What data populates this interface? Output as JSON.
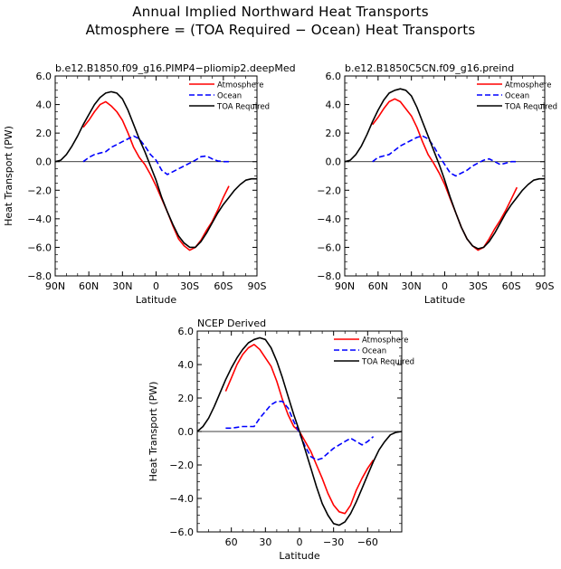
{
  "figure": {
    "title_line1": "Annual Implied Northward Heat Transports",
    "title_line2": "Atmosphere = (TOA Required − Ocean) Heat Transports"
  },
  "chart_data": [
    {
      "type": "line",
      "title": "b.e12.B1850.f09_g16.PIMP4−pliomip2.deepMed",
      "xlabel": "Latitude",
      "ylabel": "Heat Transport (PW)",
      "xlim": [
        90,
        -90
      ],
      "ylim": [
        -8,
        6
      ],
      "xticks": [
        90,
        60,
        30,
        0,
        -30,
        -60,
        -90
      ],
      "xtick_labels": [
        "90N",
        "60N",
        "30N",
        "0",
        "30S",
        "60S",
        "90S"
      ],
      "yticks": [
        6,
        4,
        2,
        0,
        -2,
        -4,
        -6,
        -8
      ],
      "ytick_labels": [
        "6.0",
        "4.0",
        "2.0",
        "0.0",
        "−2.0",
        "−4.0",
        "−6.0",
        "−8.0"
      ],
      "legend_position": "top-right",
      "series": [
        {
          "name": "Atmosphere",
          "color": "#ff0000",
          "style": "solid",
          "x": [
            65,
            60,
            55,
            50,
            45,
            40,
            35,
            30,
            25,
            20,
            15,
            10,
            5,
            0,
            -5,
            -10,
            -15,
            -20,
            -25,
            -30,
            -35,
            -40,
            -45,
            -50,
            -55,
            -60,
            -65
          ],
          "y": [
            2.4,
            2.9,
            3.5,
            4.0,
            4.2,
            3.9,
            3.5,
            2.9,
            2.0,
            1.0,
            0.3,
            -0.2,
            -0.9,
            -1.7,
            -2.6,
            -3.5,
            -4.5,
            -5.4,
            -5.9,
            -6.2,
            -6.0,
            -5.5,
            -4.8,
            -4.2,
            -3.4,
            -2.5,
            -1.7
          ]
        },
        {
          "name": "Ocean",
          "color": "#0000ff",
          "style": "dashed",
          "x": [
            65,
            60,
            55,
            50,
            45,
            40,
            35,
            30,
            25,
            20,
            15,
            10,
            5,
            0,
            -5,
            -10,
            -15,
            -20,
            -25,
            -30,
            -35,
            -40,
            -45,
            -50,
            -55,
            -60,
            -65
          ],
          "y": [
            0.0,
            0.3,
            0.5,
            0.6,
            0.7,
            1.0,
            1.2,
            1.4,
            1.6,
            1.8,
            1.6,
            1.1,
            0.5,
            0.1,
            -0.6,
            -0.9,
            -0.7,
            -0.5,
            -0.3,
            -0.1,
            0.1,
            0.35,
            0.4,
            0.2,
            0.05,
            0.0,
            0.0
          ]
        },
        {
          "name": "TOA Required",
          "color": "#000000",
          "style": "solid",
          "x": [
            90,
            85,
            80,
            75,
            70,
            65,
            60,
            55,
            50,
            45,
            40,
            35,
            30,
            25,
            20,
            15,
            10,
            5,
            0,
            -5,
            -10,
            -15,
            -20,
            -25,
            -30,
            -35,
            -40,
            -45,
            -50,
            -55,
            -60,
            -65,
            -70,
            -75,
            -80,
            -85,
            -90
          ],
          "y": [
            0.0,
            0.1,
            0.5,
            1.1,
            1.8,
            2.6,
            3.3,
            4.0,
            4.5,
            4.8,
            4.9,
            4.8,
            4.4,
            3.6,
            2.6,
            1.6,
            0.7,
            -0.3,
            -1.3,
            -2.5,
            -3.5,
            -4.4,
            -5.2,
            -5.7,
            -6.0,
            -6.0,
            -5.6,
            -5.0,
            -4.3,
            -3.6,
            -3.0,
            -2.5,
            -2.0,
            -1.6,
            -1.3,
            -1.2,
            -1.2
          ]
        }
      ]
    },
    {
      "type": "line",
      "title": "b.e12.B1850C5CN.f09_g16.preind",
      "xlabel": "Latitude",
      "ylabel": "",
      "xlim": [
        90,
        -90
      ],
      "ylim": [
        -8,
        6
      ],
      "xticks": [
        90,
        60,
        30,
        0,
        -30,
        -60,
        -90
      ],
      "xtick_labels": [
        "90N",
        "60N",
        "30N",
        "0",
        "30S",
        "60S",
        "90S"
      ],
      "yticks": [
        6,
        4,
        2,
        0,
        -2,
        -4,
        -6,
        -8
      ],
      "ytick_labels": [
        "6.0",
        "4.0",
        "2.0",
        "0.0",
        "−2.0",
        "−4.0",
        "−6.0",
        "−8.0"
      ],
      "legend_position": "top-right",
      "series": [
        {
          "name": "Atmosphere",
          "color": "#ff0000",
          "style": "solid",
          "x": [
            65,
            60,
            55,
            50,
            45,
            40,
            35,
            30,
            25,
            20,
            15,
            10,
            5,
            0,
            -5,
            -10,
            -15,
            -20,
            -25,
            -30,
            -35,
            -40,
            -45,
            -50,
            -55,
            -60,
            -65
          ],
          "y": [
            2.6,
            3.1,
            3.7,
            4.2,
            4.4,
            4.2,
            3.7,
            3.2,
            2.4,
            1.4,
            0.5,
            -0.1,
            -0.8,
            -1.6,
            -2.6,
            -3.6,
            -4.6,
            -5.4,
            -5.9,
            -6.2,
            -6.0,
            -5.4,
            -4.7,
            -4.1,
            -3.4,
            -2.6,
            -1.8
          ]
        },
        {
          "name": "Ocean",
          "color": "#0000ff",
          "style": "dashed",
          "x": [
            65,
            60,
            55,
            50,
            45,
            40,
            35,
            30,
            25,
            20,
            15,
            10,
            5,
            0,
            -5,
            -10,
            -15,
            -20,
            -25,
            -30,
            -35,
            -40,
            -45,
            -50,
            -55,
            -60,
            -65
          ],
          "y": [
            0.0,
            0.3,
            0.4,
            0.5,
            0.8,
            1.1,
            1.3,
            1.5,
            1.7,
            1.8,
            1.6,
            1.1,
            0.4,
            -0.2,
            -0.8,
            -1.0,
            -0.8,
            -0.6,
            -0.3,
            -0.1,
            0.1,
            0.2,
            0.0,
            -0.2,
            -0.1,
            0.0,
            0.0
          ]
        },
        {
          "name": "TOA Required",
          "color": "#000000",
          "style": "solid",
          "x": [
            90,
            85,
            80,
            75,
            70,
            65,
            60,
            55,
            50,
            45,
            40,
            35,
            30,
            25,
            20,
            15,
            10,
            5,
            0,
            -5,
            -10,
            -15,
            -20,
            -25,
            -30,
            -35,
            -40,
            -45,
            -50,
            -55,
            -60,
            -65,
            -70,
            -75,
            -80,
            -85,
            -90
          ],
          "y": [
            0.0,
            0.1,
            0.5,
            1.1,
            1.9,
            2.8,
            3.6,
            4.3,
            4.8,
            5.0,
            5.1,
            5.0,
            4.6,
            3.8,
            2.8,
            1.8,
            0.8,
            -0.2,
            -1.3,
            -2.5,
            -3.6,
            -4.6,
            -5.4,
            -5.9,
            -6.1,
            -6.0,
            -5.6,
            -5.0,
            -4.3,
            -3.6,
            -3.0,
            -2.5,
            -2.0,
            -1.6,
            -1.3,
            -1.2,
            -1.2
          ]
        }
      ]
    },
    {
      "type": "line",
      "title": "NCEP Derived",
      "xlabel": "Latitude",
      "ylabel": "Heat Transport (PW)",
      "xlim": [
        90,
        -90
      ],
      "ylim": [
        -6,
        6
      ],
      "xticks": [
        60,
        30,
        0,
        -30,
        -60
      ],
      "xtick_labels": [
        "60",
        "30",
        "0",
        "−30",
        "−60"
      ],
      "yticks": [
        6,
        4,
        2,
        0,
        -2,
        -4,
        -6
      ],
      "ytick_labels": [
        "6.0",
        "4.0",
        "2.0",
        "0.0",
        "−2.0",
        "−4.0",
        "−6.0"
      ],
      "legend_position": "top-right",
      "series": [
        {
          "name": "Atmosphere",
          "color": "#ff0000",
          "style": "solid",
          "x": [
            65,
            60,
            55,
            50,
            45,
            40,
            35,
            30,
            25,
            20,
            15,
            10,
            5,
            0,
            -5,
            -10,
            -15,
            -20,
            -25,
            -30,
            -35,
            -40,
            -45,
            -50,
            -55,
            -60,
            -65
          ],
          "y": [
            2.4,
            3.2,
            4.0,
            4.6,
            5.0,
            5.2,
            4.9,
            4.4,
            3.9,
            3.0,
            1.9,
            1.0,
            0.3,
            0.0,
            -0.6,
            -1.2,
            -2.0,
            -2.8,
            -3.7,
            -4.4,
            -4.8,
            -4.9,
            -4.4,
            -3.5,
            -2.8,
            -2.2,
            -1.7
          ]
        },
        {
          "name": "Ocean",
          "color": "#0000ff",
          "style": "dashed",
          "x": [
            65,
            60,
            55,
            50,
            45,
            40,
            35,
            30,
            25,
            20,
            15,
            10,
            5,
            0,
            -5,
            -10,
            -15,
            -20,
            -25,
            -30,
            -35,
            -40,
            -45,
            -50,
            -55,
            -60,
            -65
          ],
          "y": [
            0.2,
            0.2,
            0.25,
            0.3,
            0.3,
            0.3,
            0.8,
            1.2,
            1.6,
            1.8,
            1.8,
            1.4,
            0.6,
            -0.1,
            -0.9,
            -1.5,
            -1.7,
            -1.6,
            -1.3,
            -1.0,
            -0.8,
            -0.6,
            -0.4,
            -0.6,
            -0.8,
            -0.6,
            -0.3
          ]
        },
        {
          "name": "TOA Required",
          "color": "#000000",
          "style": "solid",
          "x": [
            90,
            85,
            80,
            75,
            70,
            65,
            60,
            55,
            50,
            45,
            40,
            35,
            30,
            25,
            20,
            15,
            10,
            5,
            0,
            -5,
            -10,
            -15,
            -20,
            -25,
            -30,
            -35,
            -40,
            -45,
            -50,
            -55,
            -60,
            -65,
            -70,
            -75,
            -80,
            -85,
            -90
          ],
          "y": [
            0.0,
            0.3,
            0.8,
            1.5,
            2.3,
            3.1,
            3.8,
            4.4,
            4.9,
            5.3,
            5.5,
            5.6,
            5.5,
            5.0,
            4.2,
            3.2,
            2.1,
            1.0,
            0.0,
            -1.1,
            -2.2,
            -3.3,
            -4.3,
            -5.0,
            -5.5,
            -5.6,
            -5.4,
            -4.9,
            -4.2,
            -3.4,
            -2.6,
            -1.8,
            -1.1,
            -0.6,
            -0.2,
            -0.05,
            0.0
          ]
        }
      ]
    }
  ]
}
